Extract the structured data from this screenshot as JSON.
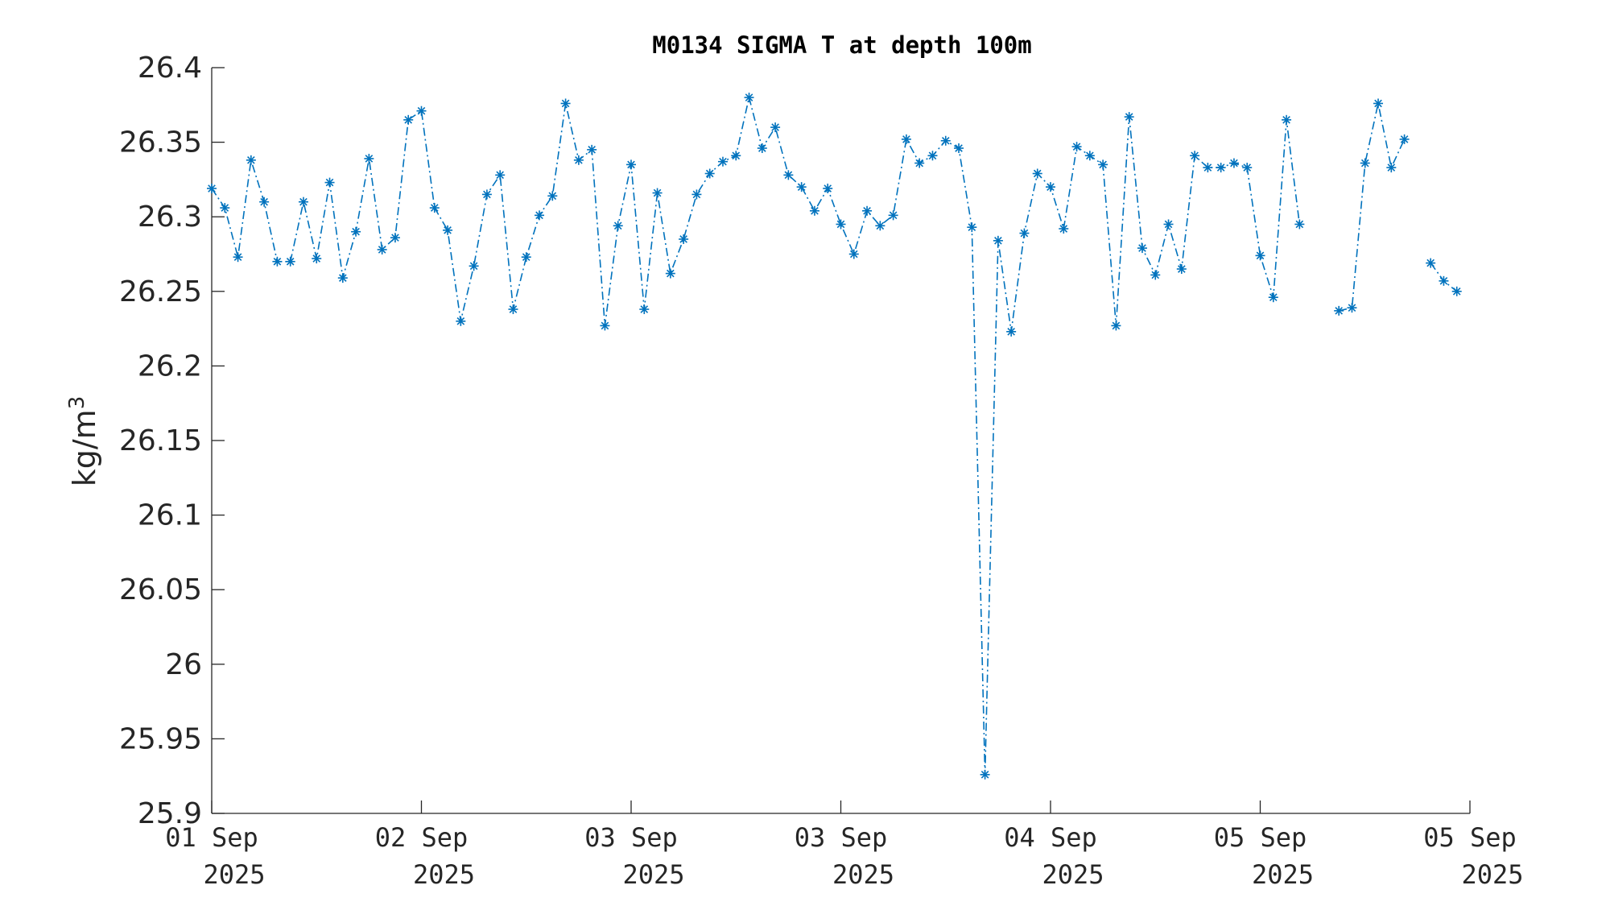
{
  "chart_data": {
    "type": "line",
    "title": "M0134 SIGMA T at depth 100m",
    "ylabel": "kg/m",
    "ylabel_superscript": "3",
    "ylim": [
      25.9,
      26.4
    ],
    "y_ticks": [
      "26.4",
      "26.35",
      "26.3",
      "26.25",
      "26.2",
      "26.15",
      "26.1",
      "26.05",
      "26",
      "25.95",
      "25.9"
    ],
    "x_tick_labels": [
      {
        "line1": "01 Sep",
        "line2": "2025"
      },
      {
        "line1": "02 Sep",
        "line2": "2025"
      },
      {
        "line1": "03 Sep",
        "line2": "2025"
      },
      {
        "line1": "03 Sep",
        "line2": "2025"
      },
      {
        "line1": "04 Sep",
        "line2": "2025"
      },
      {
        "line1": "05 Sep",
        "line2": "2025"
      },
      {
        "line1": "05 Sep",
        "line2": "2025"
      }
    ],
    "x_unit": "hours",
    "xlim": [
      0,
      96
    ],
    "x_tick_values": [
      0,
      16,
      32,
      48,
      64,
      80,
      96
    ],
    "color": "#0072BD",
    "marker": "asterisk",
    "line_style": "dash-dot",
    "series": [
      {
        "x": [
          0,
          1,
          2,
          3,
          4,
          5,
          6,
          7,
          8,
          9,
          10,
          11,
          12,
          13,
          14,
          15,
          16,
          17,
          18,
          19,
          20,
          21,
          22,
          23,
          24,
          25,
          26,
          27,
          28,
          29,
          30,
          31,
          32,
          33,
          34,
          35,
          36,
          37,
          38,
          39,
          40,
          41,
          42,
          43,
          44,
          45,
          46,
          47,
          48,
          49,
          50,
          51,
          52,
          53,
          54,
          55,
          56,
          57,
          58,
          59,
          60,
          61,
          62,
          63,
          64,
          65,
          66,
          67,
          68,
          69,
          70,
          71,
          72,
          73,
          74,
          75,
          76,
          77,
          78,
          79,
          80,
          81,
          82,
          83,
          84,
          85,
          86,
          87,
          88,
          89,
          90,
          91,
          92,
          93,
          94,
          95,
          96
        ],
        "values": [
          26.319,
          26.306,
          26.273,
          26.338,
          26.31,
          26.27,
          26.27,
          26.31,
          26.272,
          26.323,
          26.259,
          26.29,
          26.339,
          26.278,
          26.286,
          26.365,
          26.371,
          26.306,
          26.291,
          26.23,
          26.267,
          26.315,
          26.328,
          26.238,
          26.273,
          26.301,
          26.314,
          26.376,
          26.338,
          26.345,
          26.227,
          26.294,
          26.335,
          26.238,
          26.316,
          26.262,
          26.285,
          26.315,
          26.329,
          26.337,
          26.341,
          26.38,
          26.346,
          26.36,
          26.328,
          26.32,
          26.304,
          26.319,
          26.295,
          26.275,
          26.304,
          26.294,
          26.301,
          26.352,
          26.336,
          26.341,
          26.351,
          26.346,
          26.293,
          25.926,
          26.284,
          26.223,
          26.289,
          26.329,
          26.32,
          26.292,
          26.347,
          26.341,
          26.335,
          26.227,
          26.367,
          26.279,
          26.261,
          26.295,
          26.265,
          26.341,
          26.333,
          26.333,
          26.336,
          26.333,
          26.274,
          26.246,
          26.365,
          26.295,
          null,
          null,
          26.237,
          26.239,
          26.336,
          26.376,
          26.333,
          26.352,
          null,
          26.269,
          26.257,
          26.25,
          null
        ]
      }
    ]
  }
}
